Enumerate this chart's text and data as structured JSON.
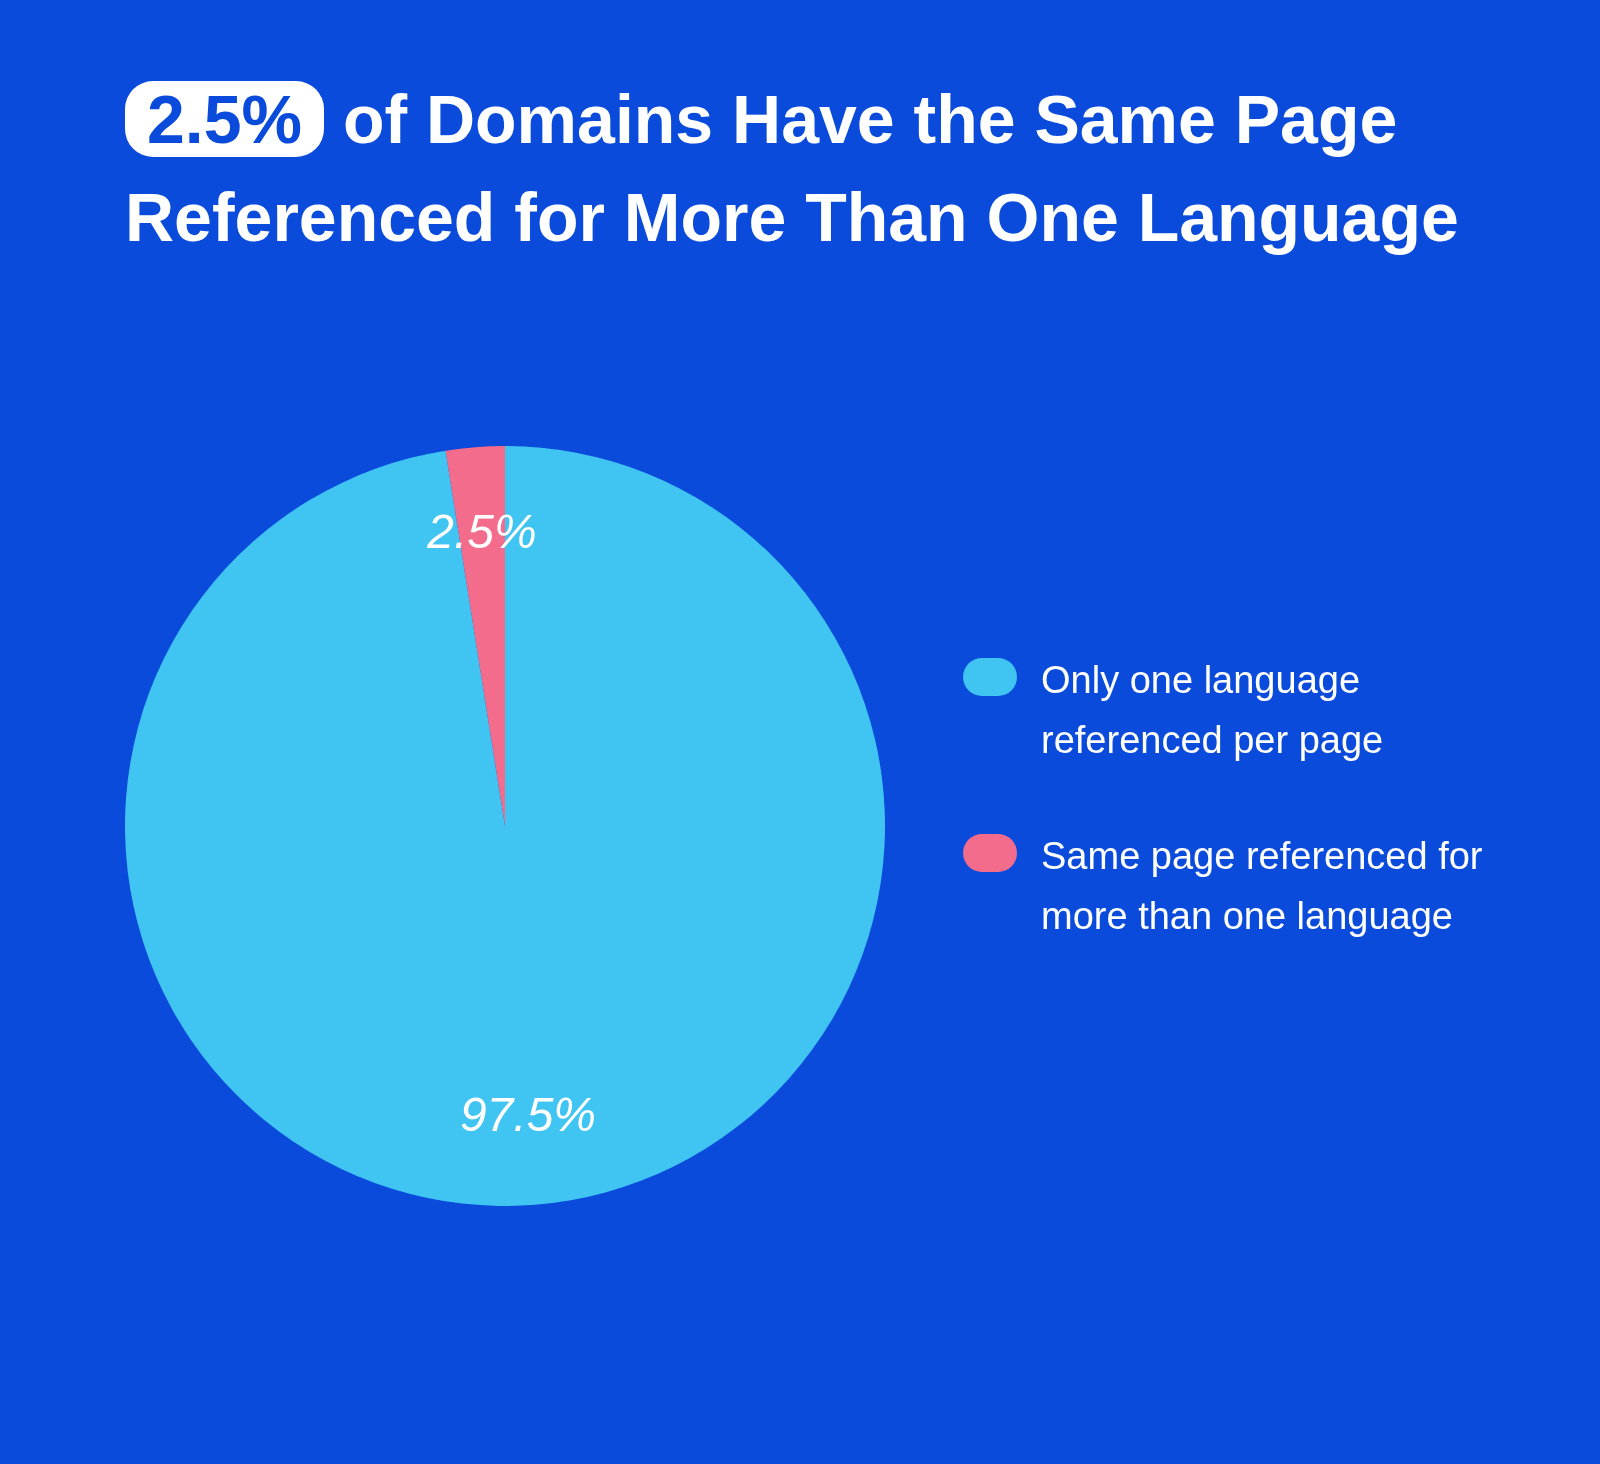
{
  "chart_data": {
    "type": "pie",
    "title": "2.5% of Domains Have the Same Page Referenced for More Than One Language",
    "categories": [
      "Only one language referenced per page",
      "Same page referenced for more than one language"
    ],
    "values": [
      97.5,
      2.5
    ],
    "colors": [
      "#40c4f2",
      "#f46c8c"
    ],
    "value_labels": [
      "97.5%",
      "2.5%"
    ],
    "legend": "right"
  }
}
